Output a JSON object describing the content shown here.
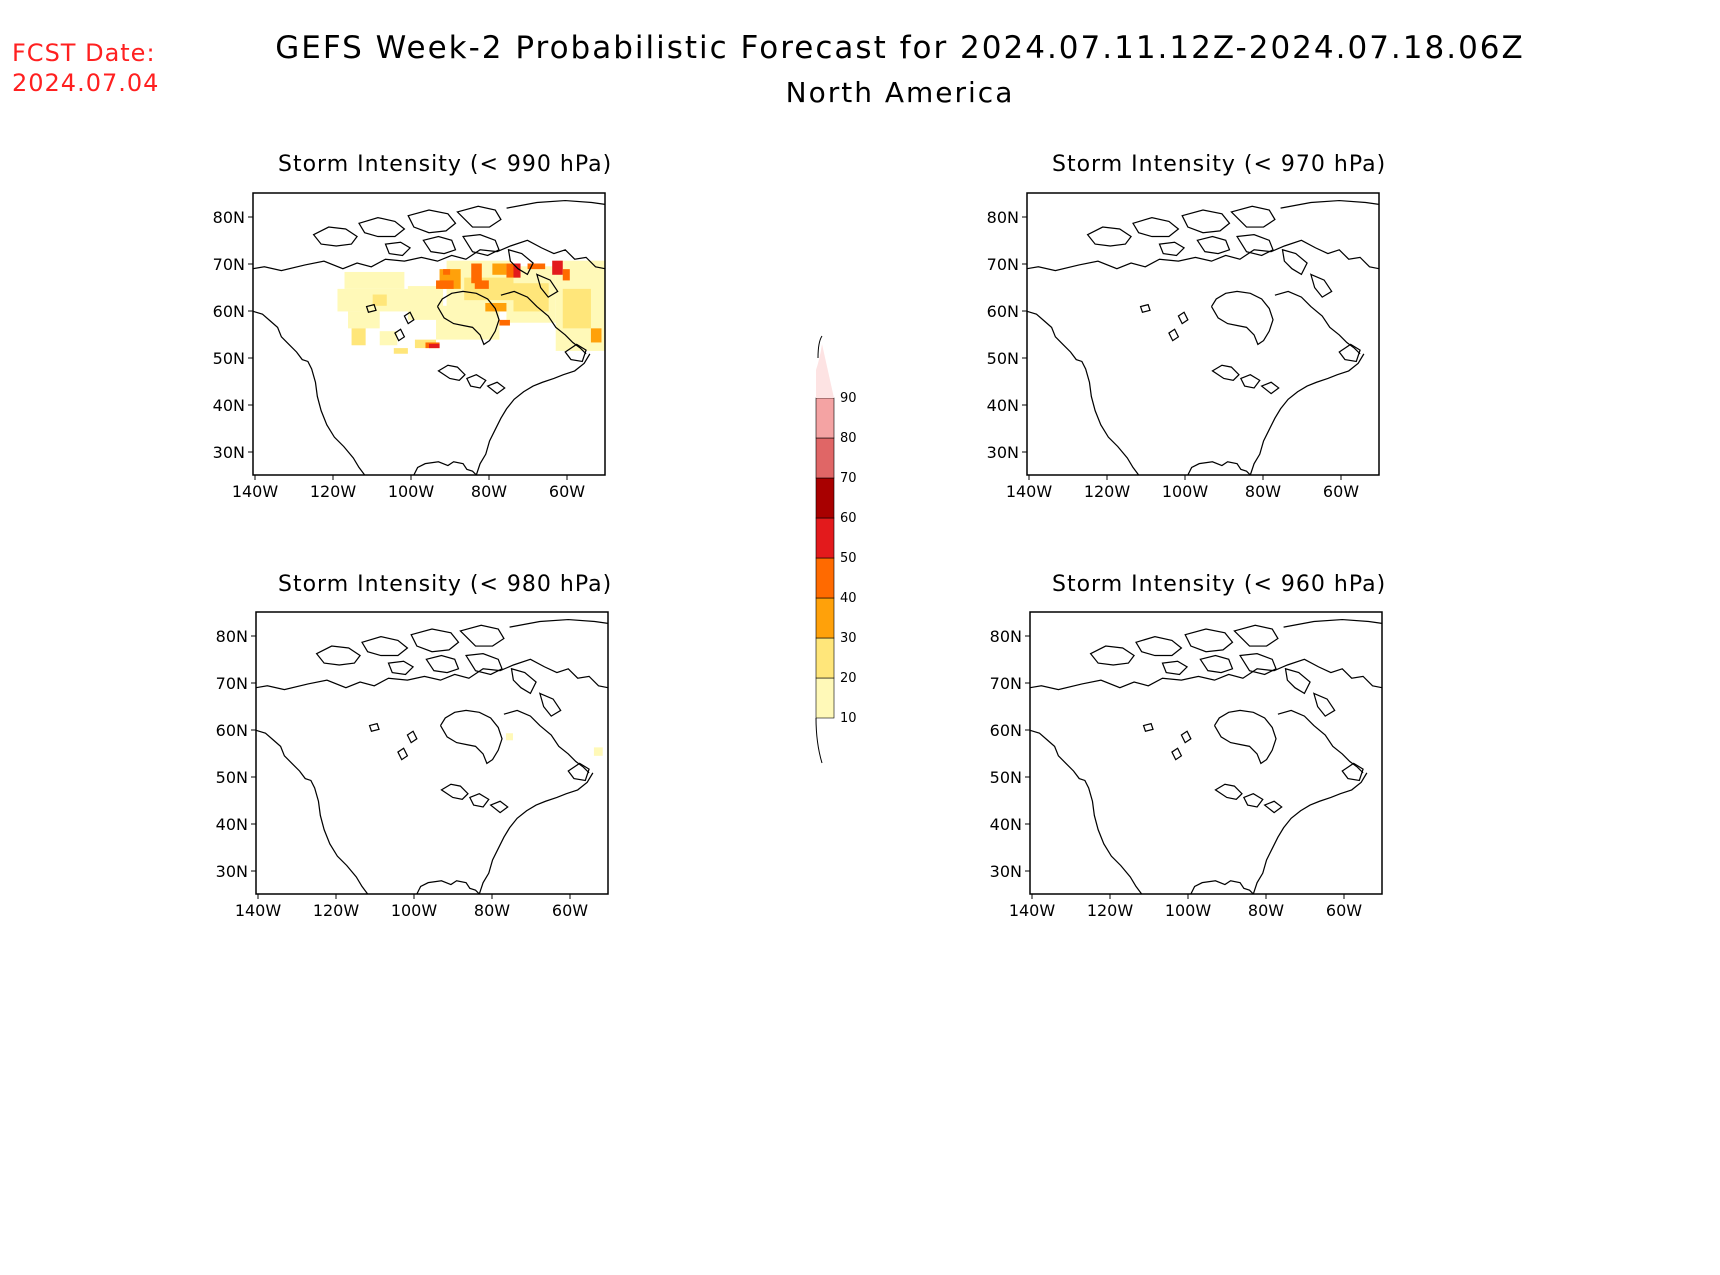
{
  "fcst": {
    "line1": "FCST Date:",
    "line2": "2024.07.04"
  },
  "title": {
    "main": "GEFS Week-2 Probabilistic Forecast for 2024.07.11.12Z-2024.07.18.06Z",
    "region": "North America"
  },
  "axes": {
    "lat_labels": [
      "80N",
      "70N",
      "60N",
      "50N",
      "40N",
      "30N"
    ],
    "lon_labels": [
      "140W",
      "120W",
      "100W",
      "80W",
      "60W"
    ]
  },
  "panels": [
    {
      "id": "p990",
      "title": "Storm Intensity (< 990 hPa)"
    },
    {
      "id": "p970",
      "title": "Storm Intensity (< 970 hPa)"
    },
    {
      "id": "p980",
      "title": "Storm Intensity (< 980 hPa)"
    },
    {
      "id": "p960",
      "title": "Storm Intensity (< 960 hPa)"
    }
  ],
  "colorbar": {
    "labels": [
      "10",
      "20",
      "30",
      "40",
      "50",
      "60",
      "70",
      "80",
      "90"
    ],
    "colors": [
      "#fff9b8",
      "#ffe67a",
      "#ffa10a",
      "#ff6a00",
      "#e31a1c",
      "#a80000",
      "#e06666",
      "#f4a3a3",
      "#fde3e3"
    ]
  }
}
